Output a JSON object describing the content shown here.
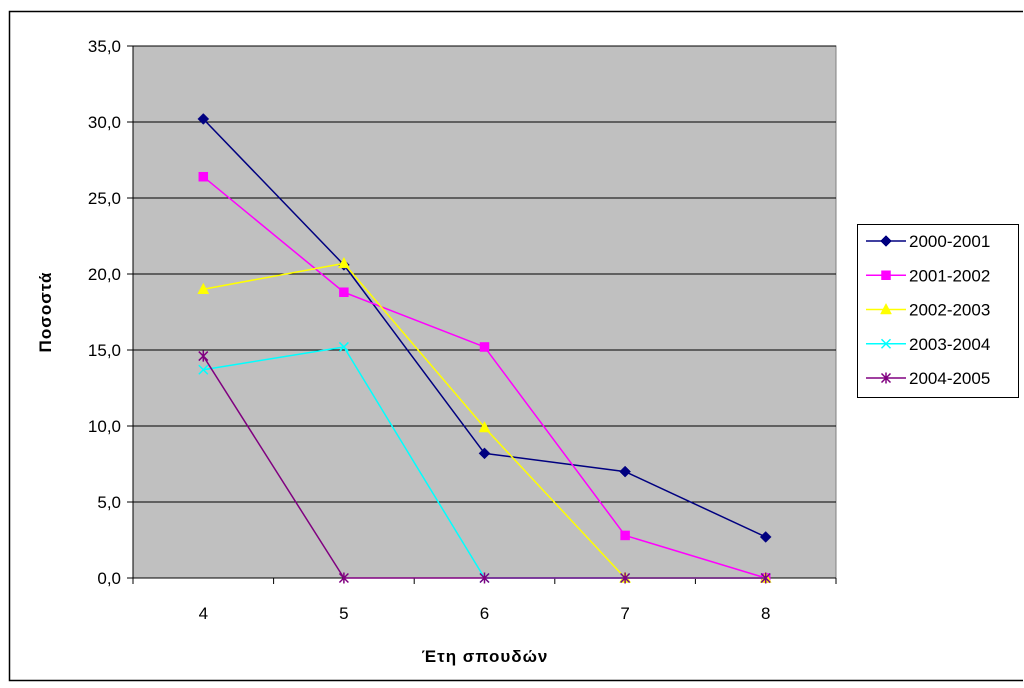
{
  "chart_data": {
    "type": "line",
    "xlabel": "Έτη σπουδών",
    "ylabel": "Ποσοστά",
    "categories": [
      "4",
      "5",
      "6",
      "7",
      "8"
    ],
    "ylim": [
      0,
      35
    ],
    "ytick_step": 5,
    "ytick_labels": [
      "0,0",
      "5,0",
      "10,0",
      "15,0",
      "20,0",
      "25,0",
      "30,0",
      "35,0"
    ],
    "grid": true,
    "grid_color": "#000000",
    "legend_position": "right",
    "plot_background": "#C0C0C0",
    "plot_border": "#808080",
    "series": [
      {
        "name": "2000-2001",
        "color": "#000080",
        "marker": "diamond",
        "values": [
          30.2,
          20.6,
          8.2,
          7.0,
          2.7
        ]
      },
      {
        "name": "2001-2002",
        "color": "#FF00FF",
        "marker": "square",
        "values": [
          26.4,
          18.8,
          15.2,
          2.8,
          0.0
        ]
      },
      {
        "name": "2002-2003",
        "color": "#FFFF00",
        "marker": "triangle",
        "values": [
          19.0,
          20.7,
          9.9,
          0.0,
          0.0
        ]
      },
      {
        "name": "2003-2004",
        "color": "#00FFFF",
        "marker": "x",
        "values": [
          13.7,
          15.2,
          0.0,
          0.0,
          0.0
        ]
      },
      {
        "name": "2004-2005",
        "color": "#800080",
        "marker": "asterisk",
        "values": [
          14.6,
          0.0,
          0.0,
          0.0,
          0.0
        ]
      }
    ]
  }
}
